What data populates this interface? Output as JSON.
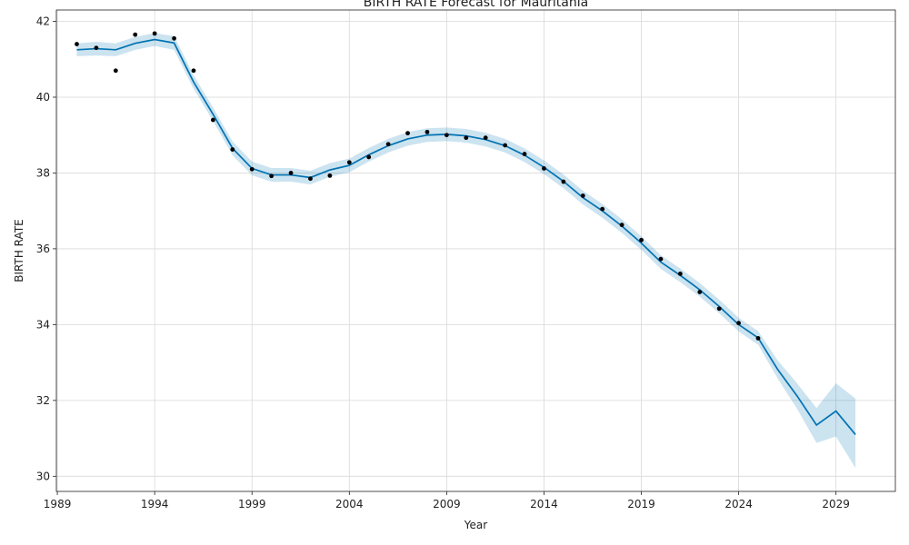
{
  "chart_data": {
    "type": "line",
    "title": "BIRTH RATE Forecast for Mauritania",
    "xlabel": "Year",
    "ylabel": "BIRTH RATE",
    "xlim": [
      1988.95,
      2032.05
    ],
    "ylim": [
      29.6,
      42.3
    ],
    "xticks": [
      1989,
      1994,
      1999,
      2004,
      2009,
      2014,
      2019,
      2024,
      2029
    ],
    "yticks": [
      30,
      32,
      34,
      36,
      38,
      40,
      42
    ],
    "grid": true,
    "colors": {
      "forecast_line": "#0072B2",
      "interval_fill": "#0072B2",
      "observed_points": "#000000"
    },
    "series": [
      {
        "kind": "observed",
        "x": [
          1990,
          1991,
          1992,
          1993,
          1994,
          1995,
          1996,
          1997,
          1998,
          1999,
          2000,
          2001,
          2002,
          2003,
          2004,
          2005,
          2006,
          2007,
          2008,
          2009,
          2010,
          2011,
          2012,
          2013,
          2014,
          2015,
          2016,
          2017,
          2018,
          2019,
          2020,
          2021,
          2022,
          2023,
          2024,
          2025
        ],
        "values": [
          41.4,
          41.3,
          40.7,
          41.65,
          41.68,
          41.55,
          40.7,
          39.4,
          38.62,
          38.1,
          37.92,
          38.0,
          37.85,
          37.93,
          38.28,
          38.42,
          38.76,
          39.05,
          39.08,
          39.0,
          38.93,
          38.93,
          38.73,
          38.5,
          38.12,
          37.77,
          37.4,
          37.05,
          36.63,
          36.23,
          35.73,
          35.34,
          34.86,
          34.42,
          34.04,
          33.64
        ]
      },
      {
        "kind": "forecast",
        "x": [
          1990,
          1991,
          1992,
          1993,
          1994,
          1995,
          1996,
          1997,
          1998,
          1999,
          2000,
          2001,
          2002,
          2003,
          2004,
          2005,
          2006,
          2007,
          2008,
          2009,
          2010,
          2011,
          2012,
          2013,
          2014,
          2015,
          2016,
          2017,
          2018,
          2019,
          2020,
          2021,
          2022,
          2023,
          2024,
          2025,
          2026,
          2027,
          2028,
          2029,
          2030
        ],
        "values": [
          41.25,
          41.28,
          41.25,
          41.42,
          41.52,
          41.43,
          40.4,
          39.55,
          38.65,
          38.12,
          37.95,
          37.95,
          37.88,
          38.08,
          38.2,
          38.48,
          38.72,
          38.9,
          39.0,
          39.02,
          38.98,
          38.88,
          38.72,
          38.47,
          38.15,
          37.78,
          37.35,
          37.0,
          36.6,
          36.15,
          35.65,
          35.3,
          34.92,
          34.48,
          34.0,
          33.65,
          32.82,
          32.12,
          31.35,
          31.72,
          31.1
        ],
        "lower": [
          41.08,
          41.1,
          41.08,
          41.25,
          41.35,
          41.25,
          40.22,
          39.37,
          38.47,
          37.94,
          37.77,
          37.77,
          37.7,
          37.9,
          38.02,
          38.3,
          38.54,
          38.72,
          38.82,
          38.84,
          38.8,
          38.7,
          38.54,
          38.29,
          37.97,
          37.6,
          37.17,
          36.82,
          36.42,
          35.97,
          35.47,
          35.12,
          34.74,
          34.3,
          33.82,
          33.47,
          32.58,
          31.78,
          30.88,
          31.05,
          30.22
        ],
        "upper": [
          41.42,
          41.46,
          41.42,
          41.59,
          41.69,
          41.61,
          40.58,
          39.73,
          38.83,
          38.3,
          38.13,
          38.13,
          38.06,
          38.26,
          38.38,
          38.66,
          38.9,
          39.08,
          39.18,
          39.2,
          39.16,
          39.06,
          38.9,
          38.65,
          38.33,
          37.96,
          37.53,
          37.18,
          36.78,
          36.33,
          35.83,
          35.48,
          35.1,
          34.66,
          34.18,
          33.83,
          33.06,
          32.45,
          31.8,
          32.45,
          32.05
        ]
      }
    ]
  }
}
